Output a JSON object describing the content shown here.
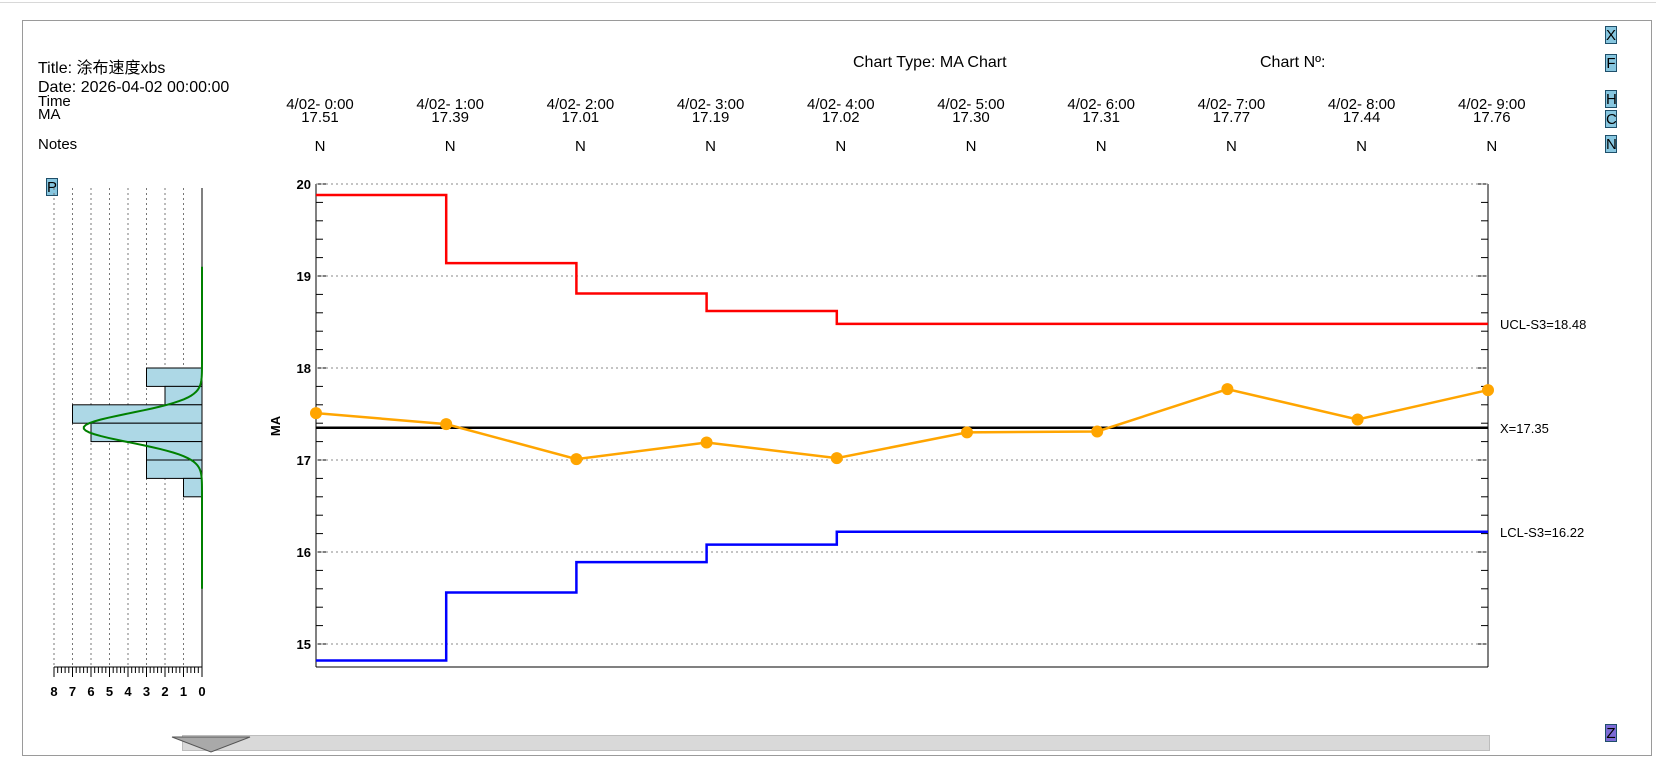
{
  "header": {
    "title": "Title: 涂布速度xbs",
    "date": "Date: 2026-04-02 00:00:00",
    "chart_type": "Chart Type: MA Chart",
    "chart_no": "Chart Nº:"
  },
  "table": {
    "row_labels": {
      "time": "Time",
      "ma": "MA",
      "notes": "Notes"
    },
    "times": [
      "4/02- 0:00",
      "4/02- 1:00",
      "4/02- 2:00",
      "4/02- 3:00",
      "4/02- 4:00",
      "4/02- 5:00",
      "4/02- 6:00",
      "4/02- 7:00",
      "4/02- 8:00",
      "4/02- 9:00"
    ],
    "ma": [
      "17.51",
      "17.39",
      "17.01",
      "17.19",
      "17.02",
      "17.30",
      "17.31",
      "17.77",
      "17.44",
      "17.76"
    ],
    "notes": [
      "N",
      "N",
      "N",
      "N",
      "N",
      "N",
      "N",
      "N",
      "N",
      "N"
    ]
  },
  "buttons": {
    "x": "X",
    "f": "F",
    "h": "H",
    "c": "C",
    "n": "N",
    "z": "Z",
    "p": "P"
  },
  "colors": {
    "ucl": "#ff0000",
    "lcl": "#0000ff",
    "center": "#000000",
    "series": "#ffa500",
    "histogram_fill": "#add8e6",
    "curve": "#008000"
  },
  "chart_data": {
    "type": "line",
    "x": [
      "4/02- 0:00",
      "4/02- 1:00",
      "4/02- 2:00",
      "4/02- 3:00",
      "4/02- 4:00",
      "4/02- 5:00",
      "4/02- 6:00",
      "4/02- 7:00",
      "4/02- 8:00",
      "4/02- 9:00"
    ],
    "ylabel": "MA",
    "ylim": [
      14.75,
      20
    ],
    "yticks": [
      15,
      16,
      17,
      18,
      19,
      20
    ],
    "grid": true,
    "series": [
      {
        "values": [
          17.51,
          17.39,
          17.01,
          17.19,
          17.02,
          17.3,
          17.31,
          17.77,
          17.44,
          17.76
        ]
      }
    ],
    "ucl": [
      19.88,
      19.14,
      18.81,
      18.62,
      18.48,
      18.48,
      18.48,
      18.48,
      18.48,
      18.48
    ],
    "lcl": [
      14.82,
      15.56,
      15.89,
      16.08,
      16.22,
      16.22,
      16.22,
      16.22,
      16.22,
      16.22
    ],
    "center": 17.35,
    "limit_labels": {
      "ucl": "UCL-S3=18.48",
      "center": "X=17.35",
      "lcl": "LCL-S3=16.22"
    },
    "histogram": {
      "bins": [
        {
          "from": 17.8,
          "to": 18.0,
          "count": 3
        },
        {
          "from": 17.6,
          "to": 17.8,
          "count": 2
        },
        {
          "from": 17.4,
          "to": 17.6,
          "count": 7
        },
        {
          "from": 17.2,
          "to": 17.4,
          "count": 6
        },
        {
          "from": 17.0,
          "to": 17.2,
          "count": 3
        },
        {
          "from": 16.8,
          "to": 17.0,
          "count": 3
        },
        {
          "from": 16.6,
          "to": 16.8,
          "count": 1
        }
      ],
      "xlim": [
        0,
        8
      ],
      "xticks": [
        "8",
        "7",
        "6",
        "5",
        "4",
        "3",
        "2",
        "1",
        "0"
      ]
    }
  }
}
